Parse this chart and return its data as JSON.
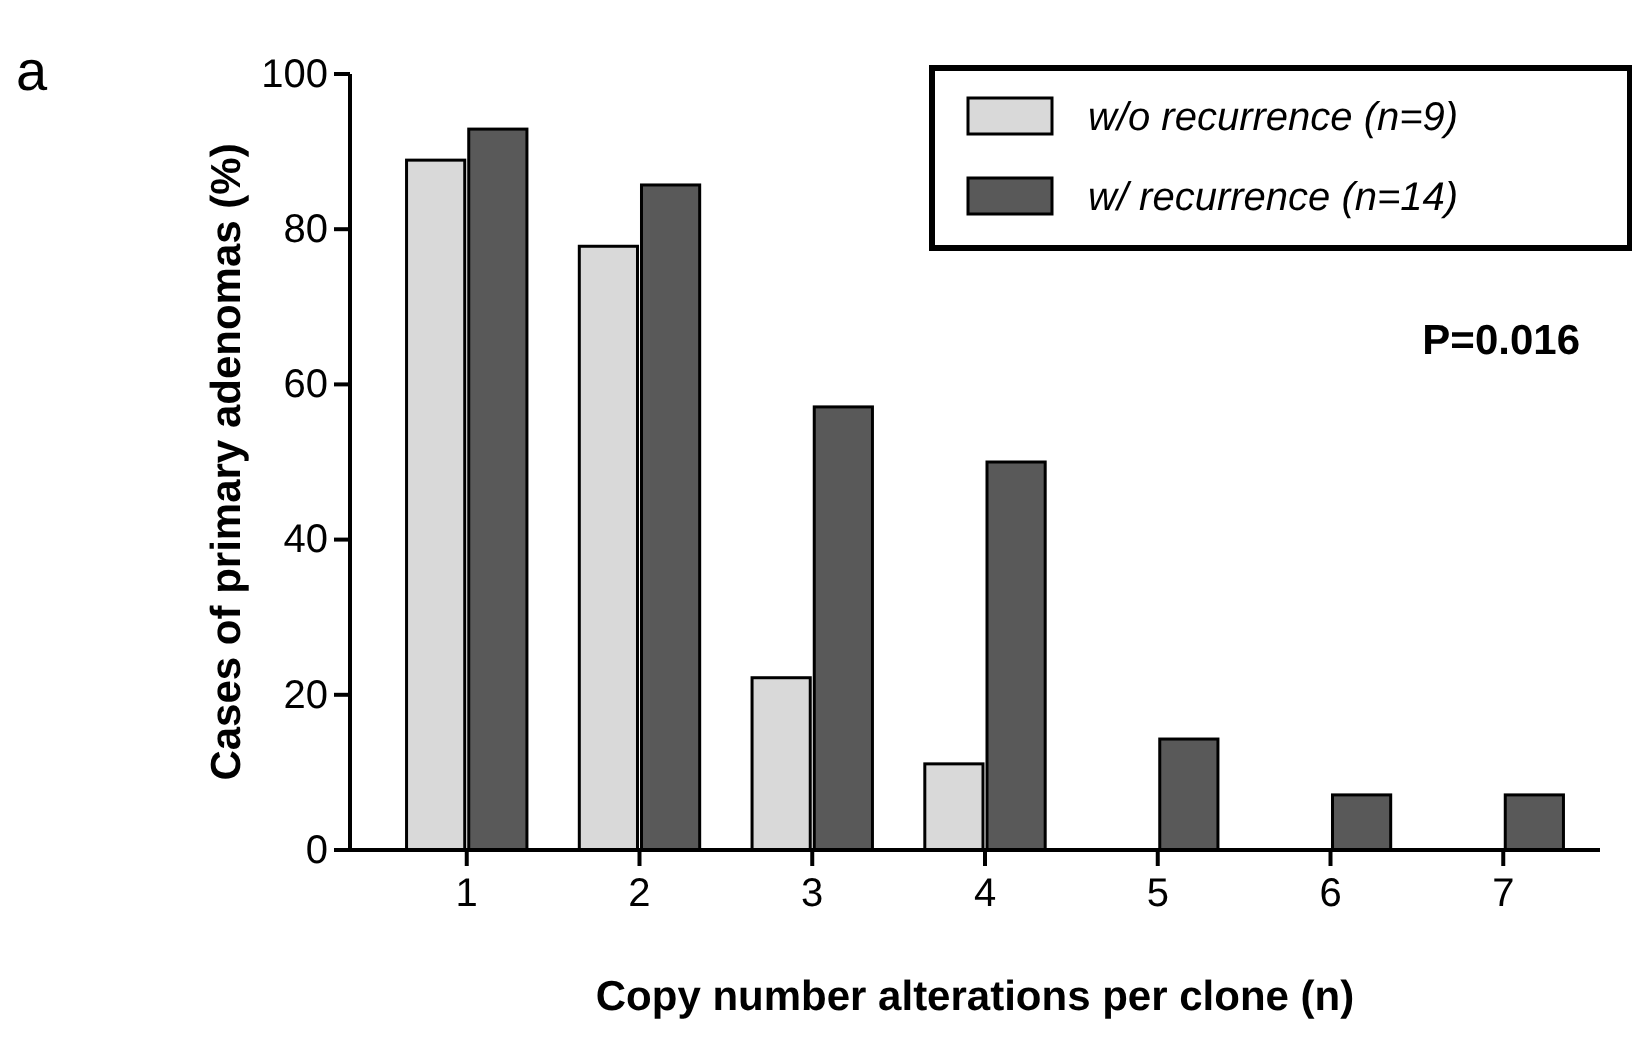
{
  "chart_data": {
    "type": "bar",
    "xlabel": "Copy number alterations per clone (n)",
    "ylabel": "Cases of primary adenomas (%)",
    "categories": [
      "1",
      "2",
      "3",
      "4",
      "5",
      "6",
      "7"
    ],
    "series": [
      {
        "name": "w/o recurrence (n=9)",
        "color": "#d9d9d9",
        "values": [
          88.9,
          77.8,
          22.2,
          11.1,
          0,
          0,
          0
        ]
      },
      {
        "name": "w/ recurrence (n=14)",
        "color": "#595959",
        "values": [
          92.9,
          85.7,
          57.1,
          50,
          14.3,
          7.1,
          7.1
        ]
      }
    ],
    "ylim": [
      0,
      100
    ],
    "yticks": [
      0,
      20,
      40,
      60,
      80,
      100
    ],
    "grid": false,
    "legend": "top right",
    "annotations": [
      "a",
      "P=0.016"
    ]
  }
}
